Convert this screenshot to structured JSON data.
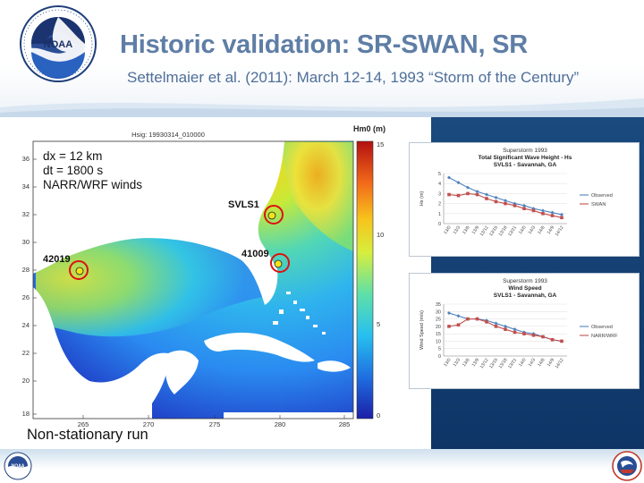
{
  "slide": {
    "title": "Historic validation: SR-SWAN, SR",
    "subtitle": "Settelmaier et al. (2011): March 12-14, 1993 “Storm of the Century”"
  },
  "logos": {
    "top": "noaa-logo",
    "footer_left": "noaa-logo",
    "footer_right": "nws-logo"
  },
  "map": {
    "colorbar_title": "Hm0 (m)",
    "plot_title": "Hsig: 19930314_010000",
    "colorbar_ticks": [
      "15",
      "10",
      "5",
      "0"
    ],
    "lat_ticks": [
      "36",
      "34",
      "32",
      "30",
      "28",
      "26",
      "24",
      "22",
      "20",
      "18"
    ],
    "lon_ticks": [
      "265",
      "270",
      "275",
      "280",
      "285"
    ],
    "info_lines": [
      "dx = 12 km",
      "dt = 1800 s",
      "NARR/WRF winds"
    ],
    "stations": [
      {
        "id": "SVLS1"
      },
      {
        "id": "41009"
      },
      {
        "id": "42019"
      }
    ],
    "caption": "Non-stationary run"
  },
  "chart_data": [
    {
      "type": "line",
      "title": "Superstorm 1993",
      "subtitle": "Total Significant Wave Height - Hs",
      "subtitle2": "SVLS1 - Savannah, GA",
      "ylabel": "Hs (m)",
      "ylim": [
        0,
        5
      ],
      "yticks": [
        "0",
        "1",
        "2",
        "3",
        "4",
        "5"
      ],
      "categories": [
        "13/0",
        "13/3",
        "13/6",
        "13/9",
        "13/12",
        "13/15",
        "13/18",
        "13/21",
        "14/0",
        "14/3",
        "14/6",
        "14/9",
        "14/12"
      ],
      "series": [
        {
          "name": "Observed",
          "color": "#4f81bd",
          "values": [
            4.6,
            4.1,
            3.6,
            3.2,
            2.9,
            2.6,
            2.3,
            2.0,
            1.8,
            1.5,
            1.3,
            1.1,
            0.9
          ]
        },
        {
          "name": "SWAN",
          "color": "#c0504d",
          "values": [
            2.9,
            2.8,
            3.0,
            2.9,
            2.5,
            2.2,
            2.0,
            1.8,
            1.5,
            1.3,
            1.0,
            0.8,
            0.6
          ]
        }
      ]
    },
    {
      "type": "line",
      "title": "Superstorm 1993",
      "subtitle": "Wind Speed",
      "subtitle2": "SVLS1 - Savannah, GA",
      "ylabel": "Wind Speed (m/s)",
      "ylim": [
        0,
        35
      ],
      "yticks": [
        "0",
        "5",
        "10",
        "15",
        "20",
        "25",
        "30",
        "35"
      ],
      "categories": [
        "13/0",
        "13/3",
        "13/6",
        "13/9",
        "13/12",
        "13/15",
        "13/18",
        "13/21",
        "14/0",
        "14/3",
        "14/6",
        "14/9",
        "14/12"
      ],
      "series": [
        {
          "name": "Observed",
          "color": "#4f81bd",
          "values": [
            29,
            27,
            25,
            25,
            24,
            22,
            20,
            18,
            16,
            15,
            13,
            11,
            10
          ]
        },
        {
          "name": "NARR/WRF",
          "color": "#c0504d",
          "values": [
            20,
            21,
            25,
            25,
            23,
            20,
            18,
            16,
            15,
            14,
            13,
            11,
            10
          ]
        }
      ]
    }
  ]
}
